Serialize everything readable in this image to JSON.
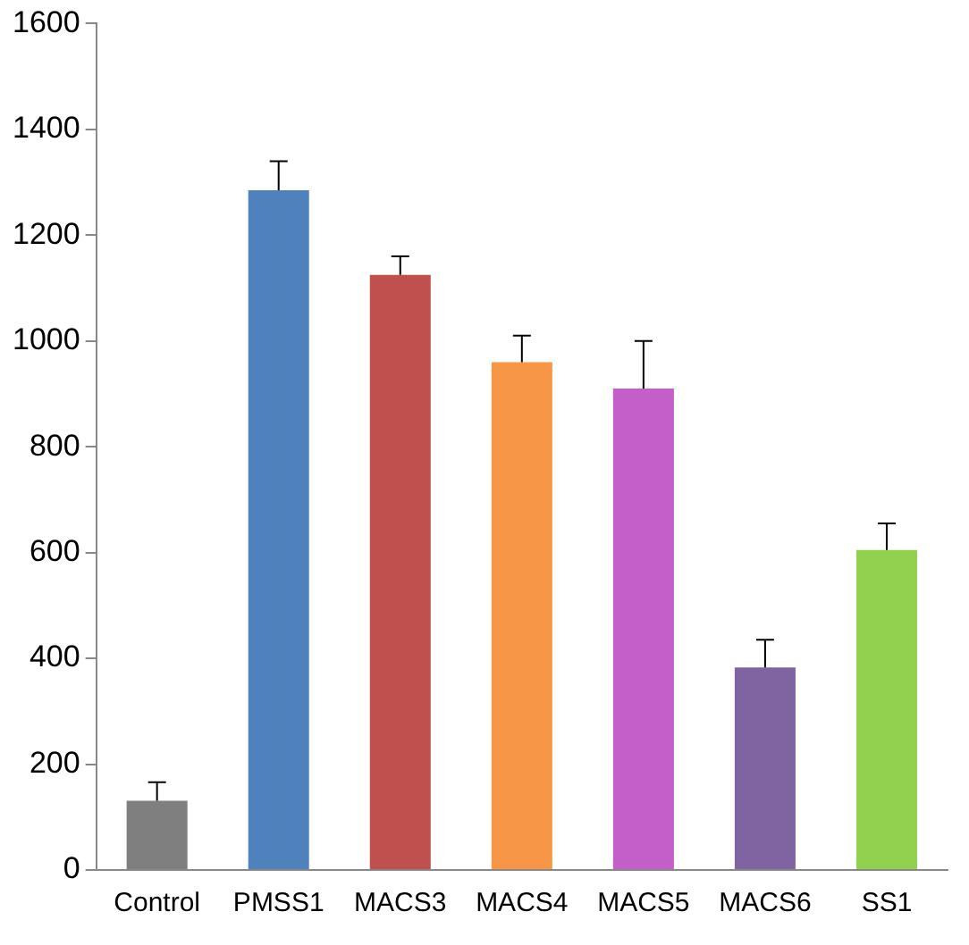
{
  "chart_data": {
    "type": "bar",
    "categories": [
      "Control",
      "PMSS1",
      "MACS3",
      "MACS4",
      "MACS5",
      "MACS6",
      "SS1"
    ],
    "values": [
      131,
      1285,
      1125,
      960,
      910,
      383,
      605
    ],
    "colors": [
      "#7f7f7f",
      "#4f81bd",
      "#c0504d",
      "#f79646",
      "#c45ec8",
      "#8064a2",
      "#92d050"
    ],
    "errors": [
      [
        131,
        166
      ],
      [
        1285,
        1340
      ],
      [
        1125,
        1160
      ],
      [
        960,
        1010
      ],
      [
        910,
        1000
      ],
      [
        383,
        435
      ],
      [
        605,
        655
      ]
    ],
    "ylim": [
      0,
      1600
    ],
    "yticks": [
      0,
      200,
      400,
      600,
      800,
      1000,
      1200,
      1400,
      1600
    ],
    "grid": false,
    "legend": false
  }
}
